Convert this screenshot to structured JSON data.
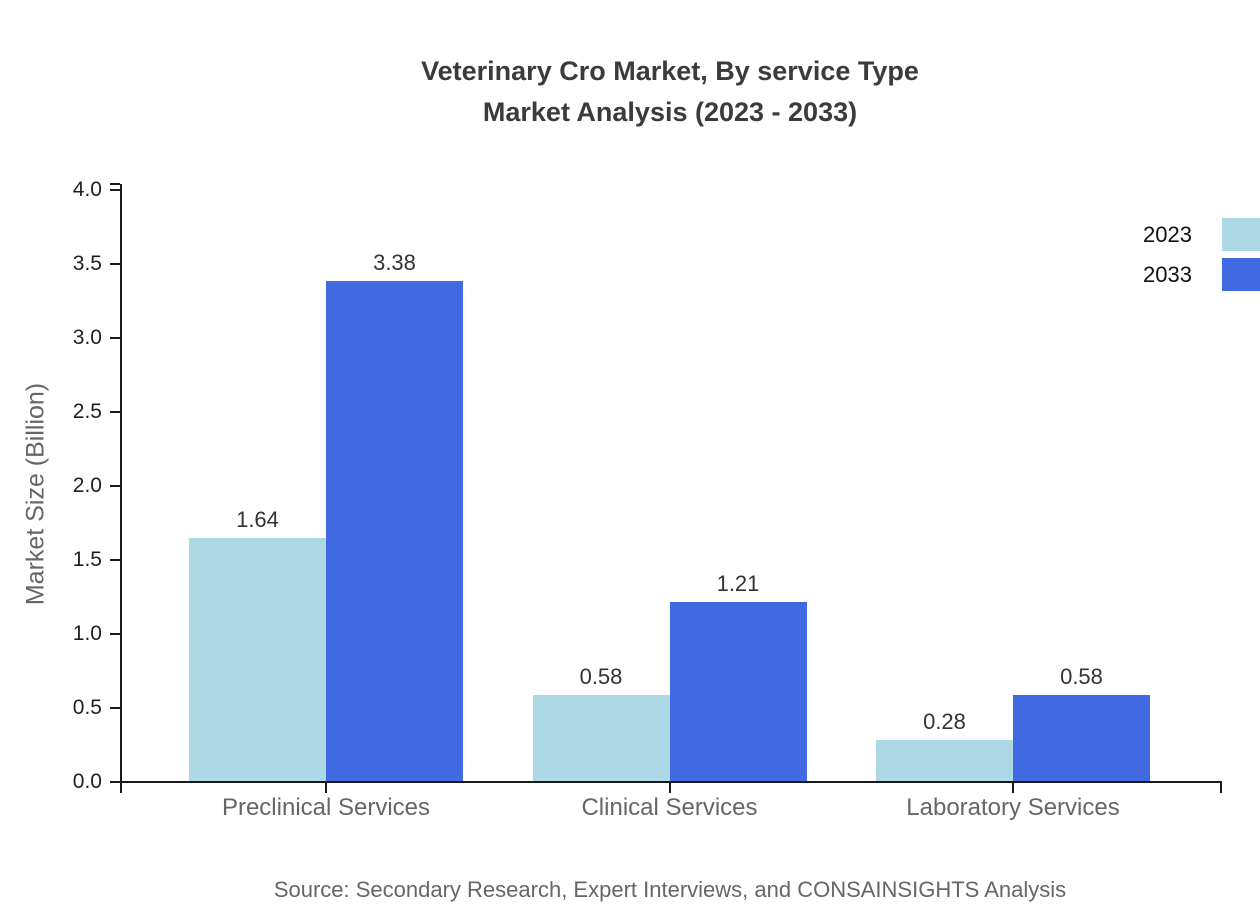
{
  "chart_data": {
    "type": "bar",
    "title_lines": {
      "line1": "Veterinary Cro Market, By service Type",
      "line2": "Market Analysis (2023 - 2033)"
    },
    "categories": [
      "Preclinical Services",
      "Clinical Services",
      "Laboratory Services"
    ],
    "series": [
      {
        "name": "2023",
        "color": "#ADD8E6",
        "values": [
          1.64,
          0.58,
          0.28
        ]
      },
      {
        "name": "2033",
        "color": "#4169E1",
        "values": [
          3.38,
          1.21,
          0.58
        ]
      }
    ],
    "value_labels": [
      "1.64",
      "3.38",
      "0.58",
      "1.21",
      "0.28",
      "0.58"
    ],
    "ylabel": "Market Size (Billion)",
    "ylim": [
      0,
      4
    ],
    "ytick_step": 0.5,
    "ytick_labels": [
      "0.0",
      "0.5",
      "1.0",
      "1.5",
      "2.0",
      "2.5",
      "3.0",
      "3.5",
      "4.0"
    ],
    "grid": false,
    "legend_position": "top-right",
    "axis_color": "#1a1a1a",
    "source": "Source: Secondary Research, Expert Interviews, and CONSAINSIGHTS Analysis"
  }
}
